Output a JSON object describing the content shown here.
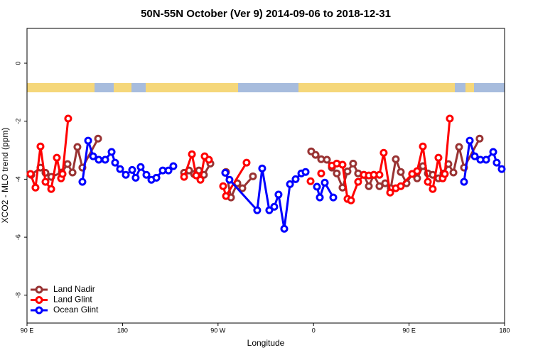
{
  "chart_data": {
    "type": "line",
    "title": "50N-55N October (Ver 9)   2014-09-06 to 2018-12-31",
    "x_label": "Longitude",
    "y_label": "XCO2 - MLO trend (ppm)",
    "xlim": [
      90,
      540
    ],
    "ylim": [
      -8.96,
      1.2
    ],
    "xticks": [
      {
        "value": 90,
        "label": "90 E"
      },
      180,
      {
        "value": 270,
        "label": "90 W"
      },
      {
        "value": 360,
        "label": "0"
      },
      {
        "value": 450,
        "label": "90 E"
      },
      {
        "value": 540,
        "label": "180"
      }
    ],
    "yticks": [
      0,
      -2,
      -4,
      -6,
      -8
    ],
    "legend": "bottom-left",
    "series": [
      {
        "name": "Land Nadir",
        "color": "#993333",
        "x": [
          94.0,
          102.7,
          107.4,
          112.8,
          122.8,
          128.2,
          132.9,
          137.5,
          142.2,
          157.0,
          null,
          238.0,
          242.7,
          247.4,
          252.0,
          256.7,
          262.8,
          null,
          277.5,
          282.2,
          288.2,
          292.9,
          302.9,
          null,
          357.8,
          361.9,
          367.2,
          372.6,
          377.3,
          381.9,
          387.3,
          392.0,
          397.3,
          402.0,
          407.4,
          412.1,
          416.8,
          422.1,
          427.5,
          432.8,
          437.5,
          442.2,
          447.6,
          452.9,
          457.6,
          463.0,
          467.7,
          472.3,
          477.7,
          482.4,
          487.1,
          491.8,
          497.1,
          501.8,
          516.5
        ],
        "values": [
          -3.85,
          -3.6,
          -3.78,
          -3.92,
          -3.77,
          -3.48,
          -3.77,
          -2.89,
          -3.6,
          -2.6,
          null,
          -3.78,
          -3.7,
          -3.82,
          -3.7,
          -3.85,
          -3.46,
          null,
          -3.75,
          -4.63,
          -4.14,
          -4.31,
          -3.9,
          null,
          -3.04,
          -3.16,
          -3.31,
          -3.33,
          -3.6,
          -3.8,
          -4.29,
          -3.73,
          -3.46,
          -3.8,
          -3.85,
          -4.24,
          -3.85,
          -4.24,
          -4.14,
          -4.31,
          -3.31,
          -3.75,
          -4.14,
          -3.82,
          -3.97,
          -3.55,
          -3.8,
          -3.85,
          -3.97,
          -3.8,
          -3.48,
          -3.77,
          -2.89,
          -3.6,
          -2.6
        ]
      },
      {
        "name": "Land Glint",
        "color": "#ff0000",
        "x": [
          93.3,
          98.0,
          102.7,
          107.4,
          112.8,
          118.1,
          122.1,
          123.5,
          128.8,
          null,
          238.0,
          245.4,
          249.4,
          253.4,
          257.4,
          261.4,
          null,
          274.8,
          277.5,
          296.9,
          null,
          357.2,
          null,
          367.2,
          null,
          377.3,
          381.9,
          387.3,
          392.0,
          395.3,
          402.0,
          407.4,
          412.1,
          416.8,
          422.1,
          426.1,
          432.2,
          437.5,
          442.2,
          452.9,
          457.6,
          463.0,
          467.7,
          472.3,
          477.7,
          481.7,
          483.7,
          488.4
        ],
        "values": [
          -3.82,
          -4.29,
          -2.87,
          -4.09,
          -4.34,
          -3.26,
          -3.97,
          -3.82,
          -1.91,
          null,
          -3.92,
          -3.14,
          -3.87,
          -4.02,
          -3.21,
          -3.33,
          null,
          -4.24,
          -4.58,
          -3.43,
          null,
          -4.07,
          null,
          -3.8,
          null,
          -3.53,
          -3.46,
          -3.5,
          -4.68,
          -4.73,
          -4.09,
          -3.85,
          -3.87,
          -3.85,
          -3.85,
          -3.09,
          -4.46,
          -4.31,
          -4.24,
          -3.82,
          -3.72,
          -2.87,
          -4.09,
          -4.34,
          -3.26,
          -3.97,
          -3.82,
          -1.91
        ]
      },
      {
        "name": "Ocean Glint",
        "color": "#0000ff",
        "x": [
          142.2,
          147.6,
          152.3,
          157.6,
          163.7,
          169.7,
          173.0,
          177.7,
          183.1,
          189.1,
          192.4,
          197.1,
          202.5,
          207.2,
          211.9,
          217.9,
          223.3,
          227.9,
          null,
          276.8,
          280.8,
          306.9,
          311.6,
          318.3,
          323.0,
          327.0,
          332.4,
          337.8,
          343.1,
          348.5,
          352.5,
          null,
          363.2,
          365.9,
          370.6,
          378.6,
          null,
          501.8,
          507.2,
          511.9,
          517.2,
          522.6,
          529.3,
          532.6,
          537.3
        ],
        "values": [
          -4.09,
          -2.67,
          -3.21,
          -3.33,
          -3.33,
          -3.06,
          -3.43,
          -3.65,
          -3.85,
          -3.68,
          -3.95,
          -3.58,
          -3.85,
          -4.02,
          -3.95,
          -3.7,
          -3.7,
          -3.55,
          null,
          -3.78,
          -4.02,
          -5.07,
          -3.63,
          -5.07,
          -4.95,
          -4.53,
          -5.71,
          -4.17,
          -4.0,
          -3.8,
          -3.75,
          null,
          -4.26,
          -4.63,
          -4.12,
          -4.63,
          null,
          -4.09,
          -2.67,
          -3.21,
          -3.33,
          -3.33,
          -3.06,
          -3.43,
          -3.65
        ]
      }
    ]
  }
}
